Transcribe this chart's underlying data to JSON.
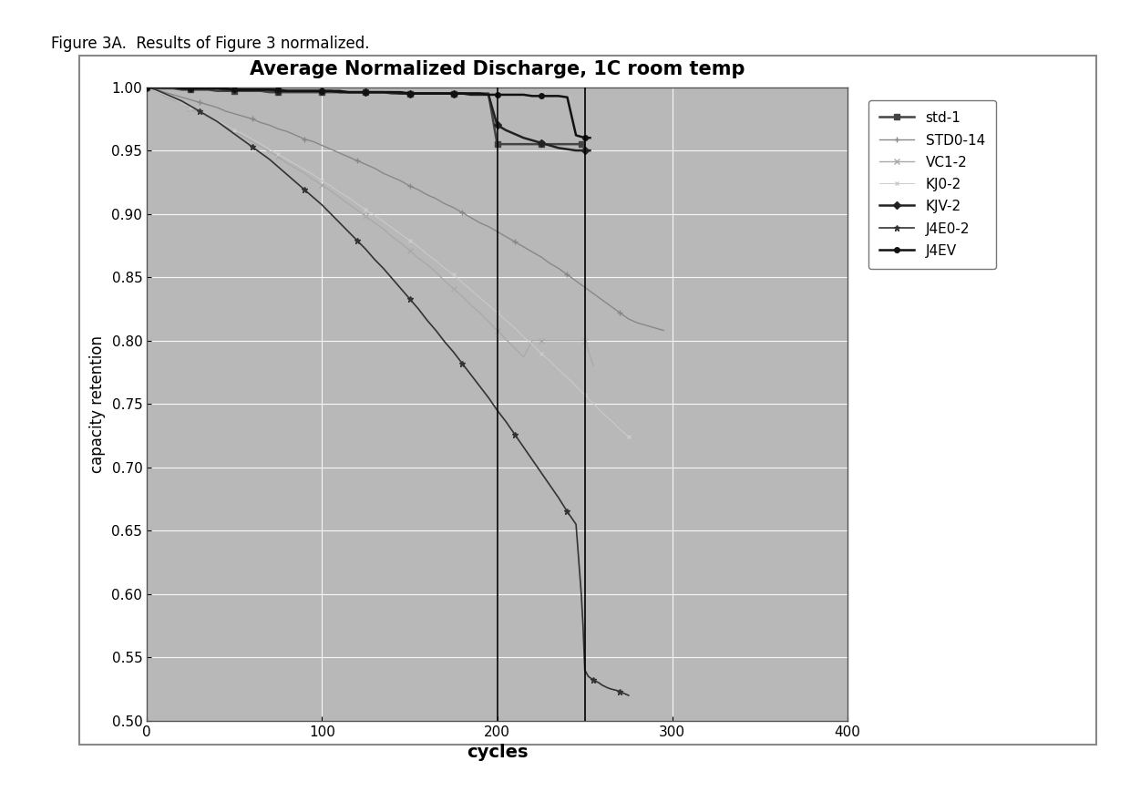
{
  "title": "Average Normalized Discharge, 1C room temp",
  "xlabel": "cycles",
  "ylabel": "capacity retention",
  "figure_caption": "Figure 3A.  Results of Figure 3 normalized.",
  "xlim": [
    0,
    400
  ],
  "ylim": [
    0.5,
    1.0
  ],
  "xticks": [
    0,
    100,
    200,
    300,
    400
  ],
  "yticks": [
    0.5,
    0.55,
    0.6,
    0.65,
    0.7,
    0.75,
    0.8,
    0.85,
    0.9,
    0.95,
    1.0
  ],
  "plot_bg_color": "#b8b8b8",
  "vlines": [
    200,
    250
  ],
  "series": [
    {
      "name": "std-1",
      "color": "#444444",
      "marker": "s",
      "markersize": 4,
      "linewidth": 1.8,
      "x": [
        0,
        5,
        10,
        15,
        20,
        25,
        30,
        35,
        40,
        45,
        50,
        55,
        60,
        65,
        70,
        75,
        80,
        85,
        90,
        95,
        100,
        105,
        110,
        115,
        120,
        125,
        130,
        135,
        140,
        145,
        150,
        155,
        160,
        165,
        170,
        175,
        180,
        185,
        190,
        195,
        200,
        205,
        210,
        215,
        220,
        225,
        230,
        235,
        240,
        245,
        248,
        249,
        250
      ],
      "y": [
        1.0,
        0.999,
        0.999,
        0.999,
        0.998,
        0.998,
        0.998,
        0.998,
        0.997,
        0.997,
        0.997,
        0.997,
        0.997,
        0.997,
        0.996,
        0.996,
        0.996,
        0.996,
        0.996,
        0.996,
        0.996,
        0.996,
        0.996,
        0.996,
        0.996,
        0.996,
        0.996,
        0.996,
        0.995,
        0.995,
        0.995,
        0.995,
        0.995,
        0.995,
        0.995,
        0.995,
        0.995,
        0.995,
        0.995,
        0.995,
        0.955,
        0.955,
        0.955,
        0.955,
        0.955,
        0.955,
        0.955,
        0.955,
        0.955,
        0.955,
        0.955,
        0.955,
        0.95
      ]
    },
    {
      "name": "STD0-14",
      "color": "#888888",
      "marker": "+",
      "markersize": 5,
      "linewidth": 1.0,
      "x": [
        0,
        5,
        10,
        15,
        20,
        25,
        30,
        35,
        40,
        45,
        50,
        55,
        60,
        65,
        70,
        75,
        80,
        85,
        90,
        95,
        100,
        105,
        110,
        115,
        120,
        125,
        130,
        135,
        140,
        145,
        150,
        155,
        160,
        165,
        170,
        175,
        180,
        185,
        190,
        195,
        200,
        205,
        210,
        215,
        220,
        225,
        230,
        235,
        240,
        245,
        250,
        255,
        260,
        265,
        270,
        275,
        280,
        285,
        290,
        295
      ],
      "y": [
        1.0,
        0.998,
        0.996,
        0.994,
        0.992,
        0.99,
        0.988,
        0.986,
        0.984,
        0.981,
        0.979,
        0.977,
        0.975,
        0.972,
        0.97,
        0.967,
        0.965,
        0.962,
        0.959,
        0.957,
        0.954,
        0.951,
        0.948,
        0.945,
        0.942,
        0.939,
        0.936,
        0.932,
        0.929,
        0.926,
        0.922,
        0.919,
        0.915,
        0.912,
        0.908,
        0.905,
        0.901,
        0.897,
        0.893,
        0.89,
        0.886,
        0.882,
        0.878,
        0.874,
        0.87,
        0.866,
        0.861,
        0.857,
        0.852,
        0.847,
        0.842,
        0.837,
        0.832,
        0.827,
        0.822,
        0.817,
        0.814,
        0.812,
        0.81,
        0.808
      ]
    },
    {
      "name": "VC1-2",
      "color": "#aaaaaa",
      "marker": "x",
      "markersize": 5,
      "linewidth": 1.0,
      "x": [
        0,
        5,
        10,
        15,
        20,
        25,
        30,
        35,
        40,
        45,
        50,
        55,
        60,
        65,
        70,
        75,
        80,
        85,
        90,
        95,
        100,
        105,
        110,
        115,
        120,
        125,
        130,
        135,
        140,
        145,
        150,
        155,
        160,
        165,
        170,
        175,
        180,
        185,
        190,
        195,
        200,
        205,
        210,
        215,
        220,
        225,
        230,
        235,
        240,
        245,
        250,
        255
      ],
      "y": [
        1.0,
        0.997,
        0.993,
        0.99,
        0.987,
        0.983,
        0.98,
        0.976,
        0.973,
        0.969,
        0.965,
        0.961,
        0.957,
        0.953,
        0.949,
        0.945,
        0.94,
        0.936,
        0.932,
        0.927,
        0.923,
        0.918,
        0.913,
        0.908,
        0.903,
        0.898,
        0.893,
        0.888,
        0.882,
        0.877,
        0.871,
        0.865,
        0.86,
        0.854,
        0.847,
        0.841,
        0.835,
        0.828,
        0.822,
        0.815,
        0.808,
        0.801,
        0.794,
        0.787,
        0.8,
        0.8,
        0.8,
        0.8,
        0.8,
        0.8,
        0.8,
        0.78
      ]
    },
    {
      "name": "KJ0-2",
      "color": "#cccccc",
      "marker": "x",
      "markersize": 3,
      "linewidth": 0.7,
      "x": [
        0,
        5,
        10,
        15,
        20,
        25,
        30,
        35,
        40,
        45,
        50,
        55,
        60,
        65,
        70,
        75,
        80,
        85,
        90,
        95,
        100,
        105,
        110,
        115,
        120,
        125,
        130,
        135,
        140,
        145,
        150,
        155,
        160,
        165,
        170,
        175,
        180,
        185,
        190,
        195,
        200,
        205,
        210,
        215,
        220,
        225,
        230,
        235,
        240,
        245,
        250,
        255,
        260,
        265,
        270,
        275
      ],
      "y": [
        1.0,
        0.997,
        0.994,
        0.991,
        0.987,
        0.984,
        0.981,
        0.977,
        0.974,
        0.97,
        0.966,
        0.963,
        0.959,
        0.955,
        0.951,
        0.947,
        0.943,
        0.939,
        0.935,
        0.931,
        0.926,
        0.922,
        0.917,
        0.913,
        0.908,
        0.903,
        0.899,
        0.894,
        0.889,
        0.884,
        0.879,
        0.874,
        0.868,
        0.863,
        0.857,
        0.852,
        0.846,
        0.84,
        0.834,
        0.828,
        0.822,
        0.816,
        0.81,
        0.803,
        0.797,
        0.79,
        0.784,
        0.777,
        0.771,
        0.764,
        0.757,
        0.75,
        0.743,
        0.737,
        0.73,
        0.724
      ]
    },
    {
      "name": "KJV-2",
      "color": "#222222",
      "marker": "D",
      "markersize": 4,
      "linewidth": 1.8,
      "x": [
        0,
        5,
        10,
        15,
        20,
        25,
        30,
        35,
        40,
        45,
        50,
        55,
        60,
        65,
        70,
        75,
        80,
        85,
        90,
        95,
        100,
        105,
        110,
        115,
        120,
        125,
        130,
        135,
        140,
        145,
        150,
        155,
        160,
        165,
        170,
        175,
        180,
        185,
        190,
        195,
        200,
        205,
        210,
        215,
        220,
        225,
        230,
        235,
        240,
        245,
        250,
        253
      ],
      "y": [
        1.0,
        1.0,
        1.0,
        1.0,
        0.999,
        0.999,
        0.999,
        0.999,
        0.999,
        0.998,
        0.998,
        0.998,
        0.998,
        0.998,
        0.998,
        0.997,
        0.997,
        0.997,
        0.997,
        0.997,
        0.997,
        0.997,
        0.996,
        0.996,
        0.996,
        0.996,
        0.996,
        0.996,
        0.996,
        0.995,
        0.995,
        0.995,
        0.995,
        0.995,
        0.995,
        0.995,
        0.995,
        0.994,
        0.994,
        0.994,
        0.97,
        0.966,
        0.963,
        0.96,
        0.958,
        0.956,
        0.954,
        0.952,
        0.951,
        0.95,
        0.95,
        0.95
      ]
    },
    {
      "name": "J4E0-2",
      "color": "#333333",
      "marker": "*",
      "markersize": 5,
      "linewidth": 1.2,
      "x": [
        0,
        5,
        10,
        15,
        20,
        25,
        30,
        35,
        40,
        45,
        50,
        55,
        60,
        65,
        70,
        75,
        80,
        85,
        90,
        95,
        100,
        105,
        110,
        115,
        120,
        125,
        130,
        135,
        140,
        145,
        150,
        155,
        160,
        165,
        170,
        175,
        180,
        185,
        190,
        195,
        200,
        205,
        210,
        215,
        220,
        225,
        230,
        235,
        240,
        245,
        248,
        249,
        250,
        252,
        255,
        258,
        260,
        263,
        265,
        268,
        270,
        275
      ],
      "y": [
        1.0,
        0.998,
        0.995,
        0.992,
        0.989,
        0.985,
        0.981,
        0.977,
        0.973,
        0.968,
        0.963,
        0.958,
        0.953,
        0.948,
        0.943,
        0.937,
        0.931,
        0.925,
        0.919,
        0.913,
        0.907,
        0.9,
        0.893,
        0.886,
        0.879,
        0.872,
        0.864,
        0.857,
        0.849,
        0.841,
        0.833,
        0.825,
        0.816,
        0.808,
        0.799,
        0.791,
        0.782,
        0.773,
        0.764,
        0.755,
        0.745,
        0.736,
        0.726,
        0.716,
        0.706,
        0.696,
        0.686,
        0.676,
        0.665,
        0.655,
        0.6,
        0.575,
        0.54,
        0.535,
        0.532,
        0.53,
        0.528,
        0.526,
        0.525,
        0.524,
        0.523,
        0.52
      ]
    },
    {
      "name": "J4EV",
      "color": "#111111",
      "marker": "o",
      "markersize": 4,
      "linewidth": 1.8,
      "x": [
        0,
        5,
        10,
        15,
        20,
        25,
        30,
        35,
        40,
        45,
        50,
        55,
        60,
        65,
        70,
        75,
        80,
        85,
        90,
        95,
        100,
        105,
        110,
        115,
        120,
        125,
        130,
        135,
        140,
        145,
        150,
        155,
        160,
        165,
        170,
        175,
        180,
        185,
        190,
        195,
        200,
        205,
        210,
        215,
        220,
        225,
        230,
        235,
        240,
        245,
        250,
        253
      ],
      "y": [
        1.0,
        1.0,
        1.0,
        1.0,
        0.999,
        0.999,
        0.999,
        0.999,
        0.999,
        0.999,
        0.998,
        0.998,
        0.998,
        0.998,
        0.998,
        0.998,
        0.997,
        0.997,
        0.997,
        0.997,
        0.997,
        0.997,
        0.997,
        0.996,
        0.996,
        0.996,
        0.996,
        0.996,
        0.996,
        0.996,
        0.995,
        0.995,
        0.995,
        0.995,
        0.995,
        0.995,
        0.995,
        0.995,
        0.995,
        0.994,
        0.994,
        0.994,
        0.994,
        0.994,
        0.993,
        0.993,
        0.993,
        0.993,
        0.992,
        0.962,
        0.96,
        0.96
      ]
    }
  ]
}
